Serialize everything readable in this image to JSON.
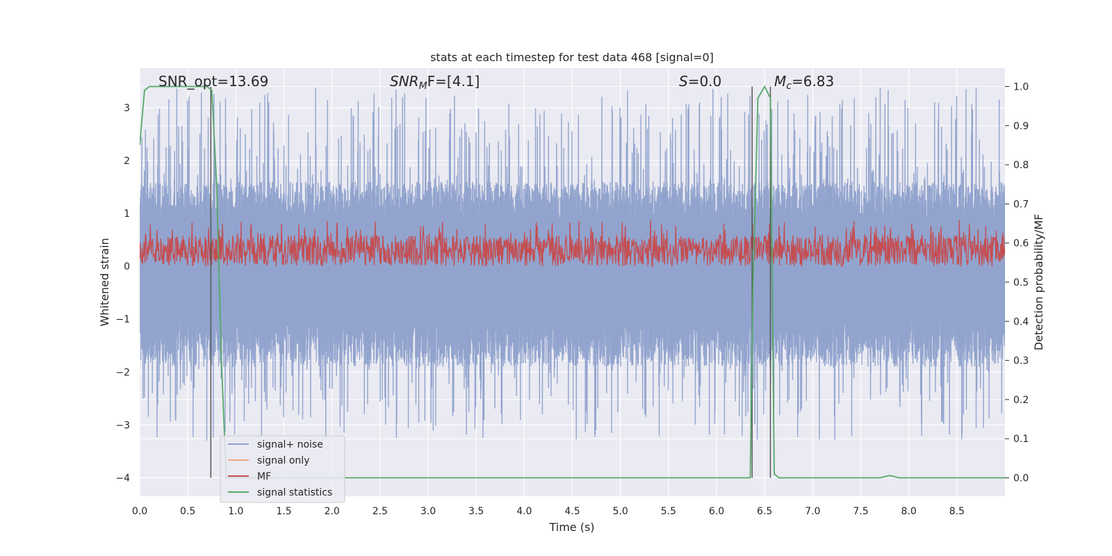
{
  "chart_data": {
    "type": "line",
    "title": "stats at each timestep for test data 468 [signal=0]",
    "xlabel": "Time (s)",
    "ylabel": "Whitened strain",
    "y2label": "Detection probability/MF",
    "xlim": [
      0.0,
      9.0
    ],
    "ylim": [
      -4.35,
      3.75
    ],
    "y2lim": [
      -0.047,
      1.047
    ],
    "x_ticks": [
      0.0,
      0.5,
      1.0,
      1.5,
      2.0,
      2.5,
      3.0,
      3.5,
      4.0,
      4.5,
      5.0,
      5.5,
      6.0,
      6.5,
      7.0,
      7.5,
      8.0,
      8.5
    ],
    "x_tick_labels": [
      "0.0",
      "0.5",
      "1.0",
      "1.5",
      "2.0",
      "2.5",
      "3.0",
      "3.5",
      "4.0",
      "4.5",
      "5.0",
      "5.5",
      "6.0",
      "6.5",
      "7.0",
      "7.5",
      "8.0",
      "8.5"
    ],
    "y_ticks": [
      3,
      2,
      1,
      0,
      -1,
      -2,
      -3,
      -4
    ],
    "y_tick_labels": [
      "3",
      "2",
      "1",
      "0",
      "−1",
      "−2",
      "−3",
      "−4"
    ],
    "y2_ticks": [
      1.0,
      0.9,
      0.8,
      0.7,
      0.6,
      0.5,
      0.4,
      0.3,
      0.2,
      0.1,
      0.0
    ],
    "y2_tick_labels": [
      "1.0",
      "0.9",
      "0.8",
      "0.7",
      "0.6",
      "0.5",
      "0.4",
      "0.3",
      "0.2",
      "0.1",
      "0.0"
    ],
    "grid": true,
    "legend_position": "lower-left",
    "annotations": {
      "snr_opt": "SNR_opt=13.69",
      "snr_mf_main": "SNR",
      "snr_mf_sub": "M",
      "snr_mf_rest": "F=[4.1]",
      "s_main": "S",
      "s_rest": "=0.0",
      "mc_main": "M",
      "mc_sub": "c",
      "mc_rest": "=6.83"
    },
    "vertical_lines_x": [
      0.74,
      6.37,
      6.56
    ],
    "series": [
      {
        "name": "signal+ noise",
        "color": "#8da0cb",
        "axis": "left",
        "noise_envelope": {
          "upper_typical": 1.6,
          "upper_peak": 3.4,
          "lower_typical": -1.9,
          "lower_peak": -3.3
        }
      },
      {
        "name": "signal only",
        "color": "#f4a582",
        "axis": "left",
        "values": []
      },
      {
        "name": "MF",
        "color": "#c44e52",
        "axis": "right",
        "band": {
          "low": 0.54,
          "high": 0.62,
          "peak": 0.66
        }
      },
      {
        "name": "signal statistics",
        "color": "#55a868",
        "axis": "right",
        "x": [
          0.0,
          0.05,
          0.1,
          0.2,
          0.7,
          0.75,
          0.8,
          0.85,
          0.9,
          0.95,
          1.0,
          6.35,
          6.38,
          6.43,
          6.5,
          6.56,
          6.6,
          6.65,
          7.7,
          7.8,
          7.9,
          8.0,
          9.0
        ],
        "y": [
          0.85,
          0.99,
          1.0,
          1.0,
          1.0,
          0.99,
          0.75,
          0.3,
          0.0,
          0.0,
          0.0,
          0.0,
          0.5,
          0.97,
          1.0,
          0.97,
          0.01,
          0.0,
          0.0,
          0.006,
          0.0,
          0.0,
          0.0
        ]
      }
    ]
  }
}
